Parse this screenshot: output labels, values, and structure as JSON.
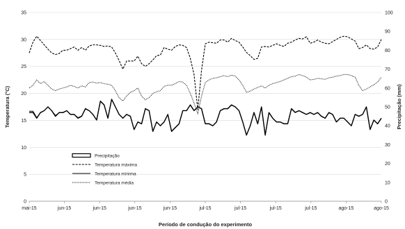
{
  "chart_data": {
    "type": "line",
    "title": "",
    "xlabel": "Período de condução  do experimento",
    "ylabel": "Temperatura (°C)",
    "y2label": "Precipitação  (mm)",
    "ylim": [
      0,
      35
    ],
    "y2lim": [
      0,
      100
    ],
    "yticks": [
      0,
      5,
      10,
      15,
      20,
      25,
      30,
      35
    ],
    "y2ticks": [
      0,
      10,
      20,
      30,
      40,
      50,
      60,
      70,
      80,
      90,
      100
    ],
    "xtick_labels": [
      "mai-15",
      "jun-15",
      "jun-15",
      "jun-15",
      "jun-15",
      "jul-15",
      "jul-15",
      "jul-15",
      "jul-15",
      "ago-15",
      "ago-15"
    ],
    "grid": "horizontal",
    "legend_position": "left-lower",
    "series": [
      {
        "name": "Precipitação",
        "axis": "right",
        "style": "thick",
        "values": [
          47,
          47,
          44,
          47,
          48,
          50,
          48,
          45,
          47,
          47,
          48,
          46,
          46,
          44,
          45,
          49,
          48,
          46,
          43,
          53,
          51,
          44,
          54,
          50,
          46,
          44,
          46,
          45,
          38,
          42,
          41,
          49,
          48,
          37,
          42,
          40,
          42,
          46,
          37,
          39,
          41,
          48,
          48,
          51,
          48,
          50,
          49,
          41,
          41,
          40,
          42,
          48,
          49,
          49,
          51,
          50,
          48,
          42,
          35,
          40,
          47,
          41,
          50,
          35,
          47,
          44,
          42,
          42,
          41,
          41,
          49,
          47,
          48,
          47,
          46,
          47,
          46,
          47,
          45,
          44,
          47,
          46,
          42,
          44,
          44,
          42,
          40,
          46,
          45,
          46,
          50,
          38,
          43,
          41,
          44
        ]
      },
      {
        "name": "Temperatura máxima",
        "axis": "left",
        "style": "dashed",
        "values": [
          27.5,
          29.5,
          30.6,
          29.8,
          29,
          28.2,
          27.5,
          27.2,
          27.4,
          28,
          28,
          28.3,
          28.6,
          28,
          28.5,
          28,
          28.8,
          29,
          29,
          28.9,
          28.7,
          28.8,
          28.6,
          27.5,
          26.1,
          24.5,
          26,
          26,
          26,
          26.9,
          25.5,
          25,
          25.5,
          26.2,
          27,
          27.1,
          28.5,
          28.2,
          28,
          28.7,
          29,
          28.9,
          28.5,
          26.5,
          23.5,
          17,
          24.3,
          29.2,
          29.5,
          29.4,
          29.3,
          29.9,
          29.9,
          29.5,
          30.2,
          29.8,
          29.5,
          28.6,
          27.6,
          27,
          26.3,
          26.5,
          28.6,
          28.7,
          28.6,
          28.9,
          29.2,
          28.9,
          28.7,
          29.3,
          29.5,
          29.9,
          30.2,
          30.1,
          30.5,
          29.3,
          29.5,
          29.9,
          29.5,
          29.3,
          29.2,
          29.6,
          30,
          30.4,
          30.6,
          30.5,
          30.1,
          29.7,
          28.3,
          28.5,
          29,
          28.3,
          28.2,
          28.6,
          30
        ]
      },
      {
        "name": "Temperatura mínima",
        "axis": "left",
        "style": "solid",
        "values": [
          16.7,
          16.7,
          15.5,
          16.4,
          16.8,
          17.5,
          16.8,
          15.9,
          16.4,
          16.4,
          16.8,
          16.1,
          16.1,
          15.5,
          15.8,
          17.2,
          16.8,
          16.1,
          15.1,
          18.6,
          17.9,
          15.4,
          18.9,
          17.5,
          16.1,
          15.4,
          16.1,
          15.8,
          13.3,
          14.7,
          14.4,
          17.2,
          16.8,
          13,
          14.7,
          14,
          14.7,
          16.1,
          13,
          13.7,
          14.4,
          16.8,
          16.8,
          17.9,
          16.8,
          17.5,
          17.2,
          14.4,
          14.4,
          14,
          14.7,
          16.8,
          17.2,
          17.2,
          17.9,
          17.5,
          16.8,
          14.7,
          12.3,
          14,
          16.5,
          14.4,
          17.5,
          12.3,
          16.4,
          15.4,
          14.7,
          14.7,
          14.4,
          14.4,
          17.2,
          16.5,
          16.8,
          16.4,
          16.1,
          16.4,
          16.1,
          16.4,
          15.8,
          15.4,
          16.4,
          16.1,
          14.7,
          15.4,
          15.4,
          14.7,
          14,
          16.1,
          15.8,
          16.1,
          17.5,
          13.3,
          15,
          14.4,
          15.4
        ]
      },
      {
        "name": "Temperatura média",
        "axis": "left",
        "style": "dotted",
        "values": [
          21,
          21.5,
          22.5,
          21.8,
          22.2,
          21.5,
          20.8,
          20.5,
          20.8,
          21,
          21.2,
          21.5,
          21.3,
          21,
          21.4,
          21.2,
          22,
          22.1,
          21.9,
          22,
          21.8,
          21.7,
          21.5,
          20.5,
          19.2,
          18.6,
          19.5,
          20.2,
          20.5,
          21,
          19.5,
          18.8,
          19.2,
          20,
          20.3,
          20.5,
          21.3,
          21.5,
          21.5,
          21.8,
          22.2,
          22.1,
          21.5,
          20,
          18.2,
          16.2,
          19.5,
          22,
          22.5,
          22.8,
          22.9,
          23.1,
          23.3,
          23.1,
          23.4,
          23.2,
          22.5,
          21.5,
          20.2,
          20.4,
          20.8,
          21.1,
          21.4,
          21,
          21.5,
          21.8,
          22,
          22.2,
          22.5,
          22.8,
          23.1,
          23.2,
          23.5,
          23.3,
          23,
          22.5,
          22.6,
          22.8,
          22.7,
          22.6,
          22.9,
          23,
          23.2,
          23.3,
          23.5,
          23.5,
          23.3,
          23,
          21.5,
          20.5,
          20.8,
          21.2,
          21.6,
          22.1,
          23
        ]
      }
    ]
  }
}
